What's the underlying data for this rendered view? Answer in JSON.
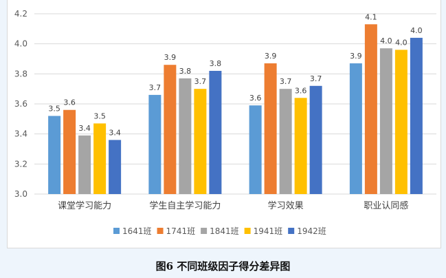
{
  "chart_data": {
    "type": "bar",
    "title": "图6  不同班级因子得分差异图",
    "categories": [
      "课堂学习能力",
      "学生自主学习能力",
      "学习效果",
      "职业认同感"
    ],
    "series": [
      {
        "name": "1641班",
        "color": "#5b9bd5",
        "values": [
          3.52,
          3.66,
          3.59,
          3.87
        ]
      },
      {
        "name": "1741班",
        "color": "#ed7d31",
        "values": [
          3.56,
          3.86,
          3.87,
          4.13
        ]
      },
      {
        "name": "1841班",
        "color": "#a5a5a5",
        "values": [
          3.39,
          3.77,
          3.7,
          3.97
        ]
      },
      {
        "name": "1941班",
        "color": "#ffc000",
        "values": [
          3.47,
          3.7,
          3.64,
          3.96
        ]
      },
      {
        "name": "1942班",
        "color": "#4472c4",
        "values": [
          3.36,
          3.82,
          3.72,
          4.04
        ]
      }
    ],
    "ylim": [
      3.0,
      4.2
    ],
    "yticks": [
      "3.0",
      "3.2",
      "3.4",
      "3.6",
      "3.8",
      "4.0",
      "4.2"
    ],
    "grid": true,
    "legend": "bottom",
    "xlabel": "",
    "ylabel": ""
  }
}
